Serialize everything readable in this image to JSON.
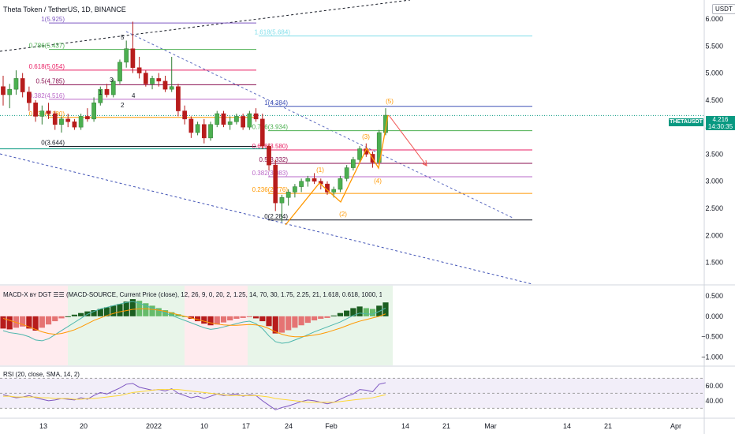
{
  "header": {
    "title": "Theta Token / TetherUS, 1D, BINANCE",
    "currency_badge": "USDT"
  },
  "price_tag": {
    "symbol": "THETAUSDT",
    "price": "4.216",
    "countdown": "14:30:35"
  },
  "panes": {
    "macd_title": "MACD-X ʙʏ DGT ☰☰ (MACD-SOURCE, Current Price (close), 12, 26, 9, 0, 20, 2, 1.25, 14, 70, 30, 1.75, 2.25, 21, 1.618, 0.618, 1000, 1, 1)",
    "rsi_title": "RSI (20, close, SMA, 14, 2)"
  },
  "chart_data": [
    {
      "type": "candlestick",
      "pane": "price",
      "title": "Theta Token / TetherUS, 1D, BINANCE",
      "ylim": [
        1.1,
        6.35
      ],
      "y_ticks": [
        "6.000",
        "5.500",
        "5.000",
        "4.500",
        "4.000",
        "3.500",
        "3.000",
        "2.500",
        "2.000",
        "1.500"
      ],
      "x_ticks": [
        "13",
        "20",
        "2022",
        "10",
        "17",
        "24",
        "Feb",
        "14",
        "21",
        "Mar",
        "14",
        "21",
        "Apr"
      ],
      "candles": [
        {
          "o": 4.75,
          "h": 4.95,
          "l": 4.4,
          "c": 4.6
        },
        {
          "o": 4.6,
          "h": 4.8,
          "l": 4.35,
          "c": 4.7
        },
        {
          "o": 4.7,
          "h": 5.05,
          "l": 4.6,
          "c": 4.9
        },
        {
          "o": 4.9,
          "h": 5.0,
          "l": 4.55,
          "c": 4.65
        },
        {
          "o": 4.65,
          "h": 4.75,
          "l": 4.3,
          "c": 4.45
        },
        {
          "o": 4.45,
          "h": 4.5,
          "l": 4.1,
          "c": 4.2
        },
        {
          "o": 4.2,
          "h": 4.4,
          "l": 4.05,
          "c": 4.3
        },
        {
          "o": 4.3,
          "h": 4.45,
          "l": 4.15,
          "c": 4.25
        },
        {
          "o": 4.25,
          "h": 4.3,
          "l": 3.95,
          "c": 4.05
        },
        {
          "o": 4.05,
          "h": 4.2,
          "l": 3.9,
          "c": 4.15
        },
        {
          "o": 4.15,
          "h": 4.25,
          "l": 4.0,
          "c": 4.1
        },
        {
          "o": 4.1,
          "h": 4.15,
          "l": 3.95,
          "c": 4.0
        },
        {
          "o": 4.0,
          "h": 4.25,
          "l": 3.95,
          "c": 4.2
        },
        {
          "o": 4.2,
          "h": 4.35,
          "l": 4.1,
          "c": 4.15
        },
        {
          "o": 4.15,
          "h": 4.55,
          "l": 4.1,
          "c": 4.45
        },
        {
          "o": 4.45,
          "h": 4.75,
          "l": 4.4,
          "c": 4.7
        },
        {
          "o": 4.7,
          "h": 4.8,
          "l": 4.55,
          "c": 4.6
        },
        {
          "o": 4.6,
          "h": 4.9,
          "l": 4.55,
          "c": 4.85
        },
        {
          "o": 4.85,
          "h": 5.25,
          "l": 4.8,
          "c": 5.2
        },
        {
          "o": 5.2,
          "h": 5.6,
          "l": 5.1,
          "c": 5.45
        },
        {
          "o": 5.45,
          "h": 5.95,
          "l": 5.0,
          "c": 5.1
        },
        {
          "o": 5.1,
          "h": 5.3,
          "l": 4.9,
          "c": 5.0
        },
        {
          "o": 5.0,
          "h": 5.05,
          "l": 4.75,
          "c": 4.8
        },
        {
          "o": 4.8,
          "h": 4.95,
          "l": 4.7,
          "c": 4.9
        },
        {
          "o": 4.9,
          "h": 5.0,
          "l": 4.75,
          "c": 4.85
        },
        {
          "o": 4.85,
          "h": 4.95,
          "l": 4.65,
          "c": 4.7
        },
        {
          "o": 4.7,
          "h": 5.3,
          "l": 4.65,
          "c": 4.75
        },
        {
          "o": 4.75,
          "h": 4.8,
          "l": 4.2,
          "c": 4.3
        },
        {
          "o": 4.3,
          "h": 4.4,
          "l": 4.05,
          "c": 4.15
        },
        {
          "o": 4.15,
          "h": 4.2,
          "l": 3.8,
          "c": 3.9
        },
        {
          "o": 3.9,
          "h": 4.1,
          "l": 3.85,
          "c": 4.05
        },
        {
          "o": 4.05,
          "h": 4.15,
          "l": 3.7,
          "c": 3.8
        },
        {
          "o": 3.8,
          "h": 4.1,
          "l": 3.75,
          "c": 4.05
        },
        {
          "o": 4.05,
          "h": 4.3,
          "l": 4.0,
          "c": 4.25
        },
        {
          "o": 4.25,
          "h": 4.3,
          "l": 4.0,
          "c": 4.05
        },
        {
          "o": 4.05,
          "h": 4.2,
          "l": 3.95,
          "c": 4.1
        },
        {
          "o": 4.1,
          "h": 4.25,
          "l": 4.05,
          "c": 4.2
        },
        {
          "o": 4.2,
          "h": 4.25,
          "l": 3.95,
          "c": 4.0
        },
        {
          "o": 4.0,
          "h": 4.3,
          "l": 3.95,
          "c": 4.25
        },
        {
          "o": 4.25,
          "h": 4.35,
          "l": 4.1,
          "c": 4.15
        },
        {
          "o": 4.15,
          "h": 4.25,
          "l": 3.6,
          "c": 3.65
        },
        {
          "o": 3.65,
          "h": 3.7,
          "l": 3.2,
          "c": 3.3
        },
        {
          "o": 3.3,
          "h": 3.4,
          "l": 2.45,
          "c": 2.6
        },
        {
          "o": 2.6,
          "h": 2.75,
          "l": 2.25,
          "c": 2.7
        },
        {
          "o": 2.7,
          "h": 2.85,
          "l": 2.55,
          "c": 2.8
        },
        {
          "o": 2.8,
          "h": 2.95,
          "l": 2.7,
          "c": 2.9
        },
        {
          "o": 2.9,
          "h": 3.05,
          "l": 2.8,
          "c": 3.0
        },
        {
          "o": 3.0,
          "h": 3.1,
          "l": 2.9,
          "c": 3.05
        },
        {
          "o": 3.05,
          "h": 3.15,
          "l": 2.95,
          "c": 3.0
        },
        {
          "o": 3.0,
          "h": 3.05,
          "l": 2.85,
          "c": 2.95
        },
        {
          "o": 2.95,
          "h": 3.0,
          "l": 2.75,
          "c": 2.8
        },
        {
          "o": 2.8,
          "h": 2.9,
          "l": 2.7,
          "c": 2.85
        },
        {
          "o": 2.85,
          "h": 3.1,
          "l": 2.8,
          "c": 3.05
        },
        {
          "o": 3.05,
          "h": 3.3,
          "l": 3.0,
          "c": 3.25
        },
        {
          "o": 3.25,
          "h": 3.45,
          "l": 3.2,
          "c": 3.4
        },
        {
          "o": 3.4,
          "h": 3.65,
          "l": 3.35,
          "c": 3.6
        },
        {
          "o": 3.6,
          "h": 3.7,
          "l": 3.45,
          "c": 3.5
        },
        {
          "o": 3.5,
          "h": 3.55,
          "l": 3.25,
          "c": 3.35
        },
        {
          "o": 3.35,
          "h": 3.95,
          "l": 3.3,
          "c": 3.9
        },
        {
          "o": 3.9,
          "h": 4.35,
          "l": 3.85,
          "c": 4.22
        }
      ],
      "fib_levels_left": [
        {
          "label": "1(5.925)",
          "price": 5.925,
          "color": "#7e57c2"
        },
        {
          "label": "0.786(5.437)",
          "price": 5.437,
          "color": "#4caf50"
        },
        {
          "label": "0.618(5.054)",
          "price": 5.054,
          "color": "#e91e63"
        },
        {
          "label": "0.5(4.785)",
          "price": 4.785,
          "color": "#880e4f"
        },
        {
          "label": "0.382(4.516)",
          "price": 4.516,
          "color": "#ba68c8"
        },
        {
          "label": "0.236(4.180)",
          "price": 4.18,
          "color": "#ff9800"
        },
        {
          "label": "0(3.644)",
          "price": 3.644,
          "color": "#131722"
        }
      ],
      "fib_ext_label": {
        "label": "1.618(5.684)",
        "price": 5.684,
        "color": "#80deea"
      },
      "fib_levels_right": [
        {
          "label": "1(4.384)",
          "price": 4.384,
          "color": "#3f51b5"
        },
        {
          "label": "0.786(3.934)",
          "price": 3.934,
          "color": "#4caf50"
        },
        {
          "label": "0.618(3.580)",
          "price": 3.58,
          "color": "#e91e63"
        },
        {
          "label": "0.5(3.332)",
          "price": 3.332,
          "color": "#880e4f"
        },
        {
          "label": "0.382(3.083)",
          "price": 3.083,
          "color": "#ba68c8"
        },
        {
          "label": "0.236(2.776)",
          "price": 2.776,
          "color": "#ff9800"
        },
        {
          "label": "0(2.284)",
          "price": 2.284,
          "color": "#131722"
        }
      ],
      "wave_labels_left": [
        "5",
        "3",
        "1",
        "4",
        "2"
      ],
      "wave_labels_right": [
        "(1)",
        "(2)",
        "(3)",
        "(4)",
        "(5)"
      ]
    },
    {
      "type": "bar",
      "pane": "macd",
      "title": "MACD-X ʙʏ DGT ☰☰",
      "y_ticks": [
        "0.500",
        "0.000",
        "−0.500",
        "−1.000"
      ],
      "ylim": [
        -1.2,
        0.75
      ],
      "histogram": [
        -0.3,
        -0.32,
        -0.28,
        -0.25,
        -0.3,
        -0.35,
        -0.28,
        -0.2,
        -0.12,
        -0.05,
        0.0,
        0.04,
        0.08,
        0.12,
        0.15,
        0.18,
        0.22,
        0.26,
        0.3,
        0.36,
        0.42,
        0.38,
        0.32,
        0.26,
        0.2,
        0.15,
        0.1,
        0.05,
        0.0,
        -0.06,
        -0.12,
        -0.18,
        -0.22,
        -0.2,
        -0.15,
        -0.1,
        -0.06,
        -0.04,
        -0.02,
        -0.05,
        -0.12,
        -0.24,
        -0.42,
        -0.4,
        -0.34,
        -0.28,
        -0.22,
        -0.16,
        -0.1,
        -0.06,
        -0.04,
        0.02,
        0.08,
        0.14,
        0.2,
        0.24,
        0.2,
        0.18,
        0.26,
        0.34
      ],
      "series": [
        {
          "values": [
            -0.35,
            -0.4,
            -0.42,
            -0.45,
            -0.5,
            -0.58,
            -0.6,
            -0.55,
            -0.45,
            -0.35,
            -0.25,
            -0.15,
            -0.05,
            0.05,
            0.12,
            0.18,
            0.22,
            0.26,
            0.3,
            0.34,
            0.36,
            0.32,
            0.26,
            0.2,
            0.14,
            0.08,
            0.02,
            -0.04,
            -0.1,
            -0.16,
            -0.22,
            -0.28,
            -0.32,
            -0.3,
            -0.26,
            -0.22,
            -0.18,
            -0.14,
            -0.12,
            -0.18,
            -0.3,
            -0.48,
            -0.62,
            -0.66,
            -0.64,
            -0.58,
            -0.52,
            -0.45,
            -0.38,
            -0.32,
            -0.26,
            -0.2,
            -0.14,
            -0.06,
            0.02,
            0.08,
            0.06,
            0.05,
            0.12,
            0.2
          ],
          "color": "#4db6ac"
        },
        {
          "values": [
            -0.05,
            -0.1,
            -0.15,
            -0.2,
            -0.26,
            -0.32,
            -0.38,
            -0.42,
            -0.44,
            -0.42,
            -0.38,
            -0.33,
            -0.26,
            -0.18,
            -0.1,
            -0.04,
            0.02,
            0.07,
            0.11,
            0.14,
            0.17,
            0.18,
            0.18,
            0.17,
            0.15,
            0.12,
            0.08,
            0.04,
            0.0,
            -0.04,
            -0.08,
            -0.12,
            -0.16,
            -0.19,
            -0.21,
            -0.22,
            -0.22,
            -0.21,
            -0.2,
            -0.21,
            -0.24,
            -0.3,
            -0.38,
            -0.44,
            -0.48,
            -0.5,
            -0.5,
            -0.48,
            -0.46,
            -0.43,
            -0.39,
            -0.34,
            -0.29,
            -0.23,
            -0.17,
            -0.12,
            -0.08,
            -0.04,
            0.0,
            0.06
          ],
          "color": "#ff9800"
        }
      ]
    },
    {
      "type": "line",
      "pane": "rsi",
      "title": "RSI (20, close, SMA, 14, 2)",
      "y_ticks": [
        "60.00",
        "40.00"
      ],
      "ylim": [
        22,
        84
      ],
      "bands": [
        70,
        50,
        30
      ],
      "series": [
        {
          "values": [
            48,
            46,
            44,
            45,
            47,
            44,
            42,
            40,
            41,
            43,
            42,
            41,
            44,
            42,
            47,
            51,
            49,
            53,
            57,
            62,
            63,
            58,
            56,
            54,
            55,
            53,
            56,
            50,
            47,
            44,
            46,
            43,
            46,
            49,
            47,
            48,
            49,
            46,
            48,
            47,
            40,
            34,
            28,
            31,
            33,
            36,
            39,
            41,
            40,
            38,
            36,
            38,
            42,
            46,
            49,
            55,
            54,
            52,
            62,
            64
          ],
          "color": "#7e57c2"
        },
        {
          "values": [
            46,
            46,
            45,
            45,
            45,
            45,
            44,
            44,
            43,
            43,
            43,
            42,
            42,
            43,
            43,
            44,
            45,
            46,
            47,
            49,
            51,
            52,
            53,
            54,
            55,
            55,
            55,
            55,
            54,
            53,
            52,
            51,
            50,
            49,
            48,
            47,
            47,
            47,
            47,
            47,
            46,
            45,
            43,
            42,
            41,
            40,
            39,
            38,
            38,
            38,
            38,
            38,
            39,
            40,
            41,
            42,
            43,
            44,
            46,
            48
          ],
          "color": "#fdd835"
        }
      ]
    }
  ]
}
